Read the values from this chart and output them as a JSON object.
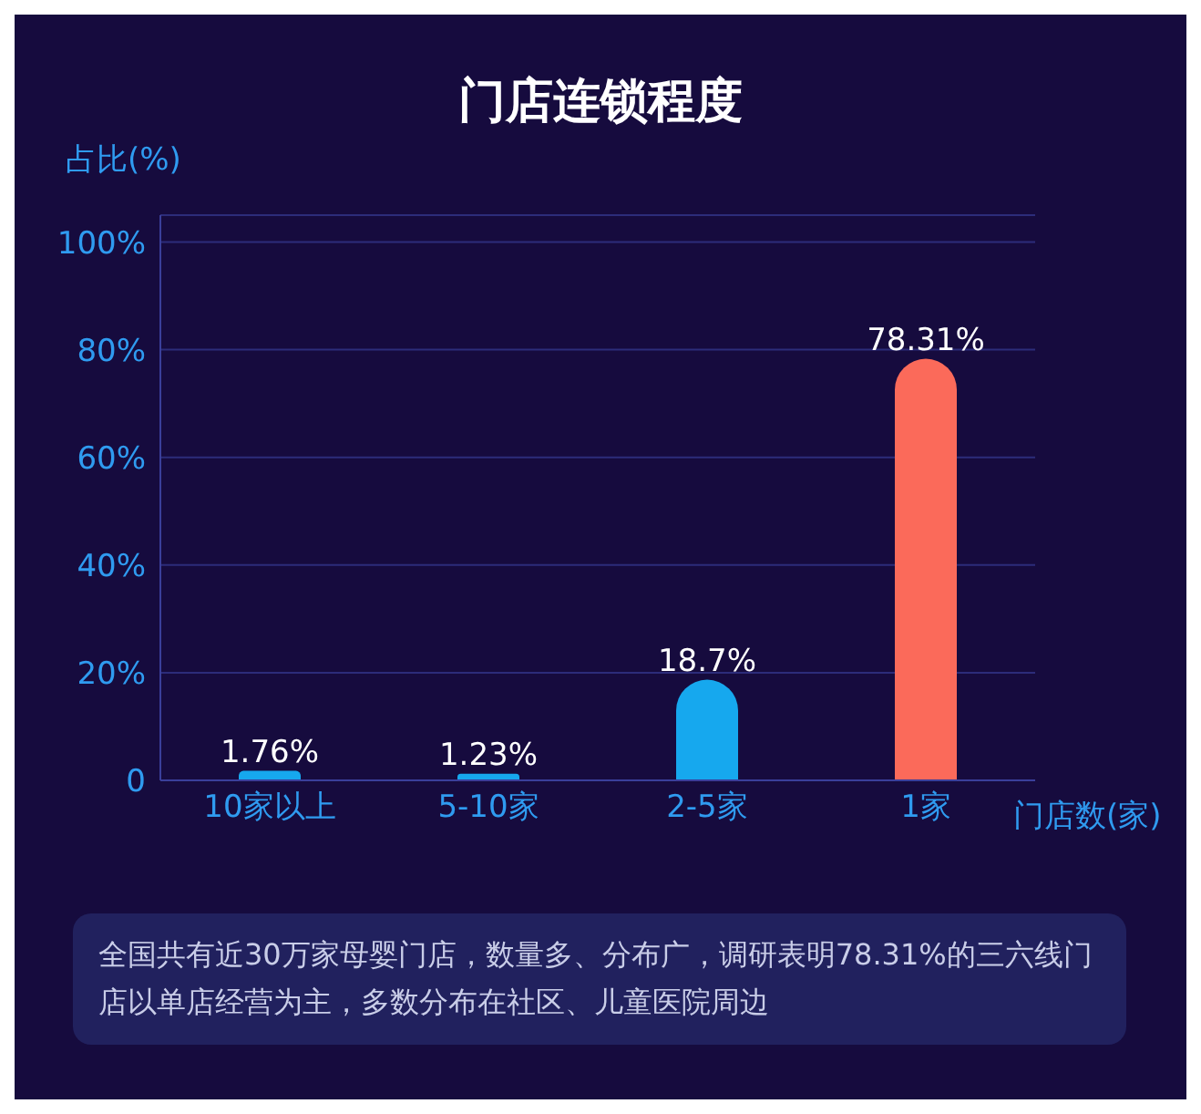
{
  "chart_data": {
    "type": "bar",
    "title": "门店连锁程度",
    "ylabel": "占比(%)",
    "xlabel": "门店数(家)",
    "categories": [
      "10家以上",
      "5-10家",
      "2-5家",
      "1家"
    ],
    "values": [
      1.76,
      1.23,
      18.7,
      78.31
    ],
    "colors": [
      "#16a8ee",
      "#16a8ee",
      "#16a8ee",
      "#fb6a5a"
    ],
    "value_labels": [
      "1.76%",
      "1.23%",
      "18.7%",
      "78.31%"
    ],
    "ylim": [
      0,
      105
    ],
    "yticks": [
      0,
      {
        "value": 20,
        "label": "20%"
      },
      {
        "value": 40,
        "label": "40%"
      },
      {
        "value": 60,
        "label": "60%"
      },
      {
        "value": 80,
        "label": "80%"
      },
      {
        "value": 100,
        "label": "100%"
      }
    ],
    "grid": "y",
    "annotations": [
      "全国共有近30万家母婴门店，数量多、分布广，调研表明78.31%的三六线门店以单店经营为主，多数分布在社区、儿童医院周边"
    ]
  }
}
